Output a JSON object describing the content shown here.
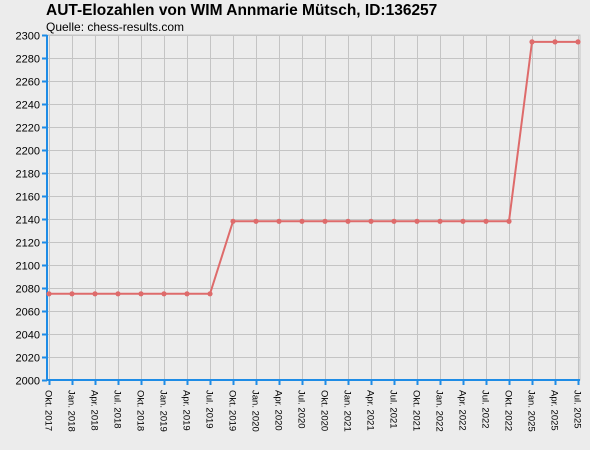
{
  "header": {
    "title": "AUT-Elozahlen von WIM Annmarie Mütsch, ID:136257",
    "subtitle": "Quelle: chess-results.com"
  },
  "colors": {
    "line": "#de6b6b",
    "axis": "#1e8ce6",
    "grid": "#c4c4c4",
    "background": "#ececec"
  },
  "chart_data": {
    "type": "line",
    "title": "AUT-Elozahlen von WIM Annmarie Mütsch, ID:136257",
    "subtitle": "Quelle: chess-results.com",
    "xlabel": "",
    "ylabel": "",
    "ylim": [
      2000,
      2300
    ],
    "ytick_step": 20,
    "grid": true,
    "x": [
      "Okt. 2017",
      "Jan. 2018",
      "Apr. 2018",
      "Jul. 2018",
      "Okt. 2018",
      "Jan. 2019",
      "Apr. 2019",
      "Jul. 2019",
      "Okt. 2019",
      "Jan. 2020",
      "Apr. 2020",
      "Jul. 2020",
      "Okt. 2020",
      "Jan. 2021",
      "Apr. 2021",
      "Jul. 2021",
      "Okt. 2021",
      "Jan. 2022",
      "Apr. 2022",
      "Jul. 2022",
      "Okt. 2022",
      "Jan. 2025",
      "Apr. 2025",
      "Jul. 2025"
    ],
    "series": [
      {
        "values": [
          2075,
          2075,
          2075,
          2075,
          2075,
          2075,
          2075,
          2075,
          2138,
          2138,
          2138,
          2138,
          2138,
          2138,
          2138,
          2138,
          2138,
          2138,
          2138,
          2138,
          2138,
          2294,
          2294,
          2294
        ]
      }
    ]
  }
}
